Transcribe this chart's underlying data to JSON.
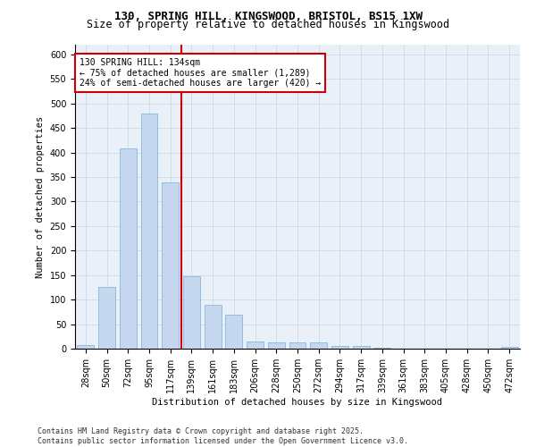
{
  "title_line1": "130, SPRING HILL, KINGSWOOD, BRISTOL, BS15 1XW",
  "title_line2": "Size of property relative to detached houses in Kingswood",
  "xlabel": "Distribution of detached houses by size in Kingswood",
  "ylabel": "Number of detached properties",
  "categories": [
    "28sqm",
    "50sqm",
    "72sqm",
    "95sqm",
    "117sqm",
    "139sqm",
    "161sqm",
    "183sqm",
    "206sqm",
    "228sqm",
    "250sqm",
    "272sqm",
    "294sqm",
    "317sqm",
    "339sqm",
    "361sqm",
    "383sqm",
    "405sqm",
    "428sqm",
    "450sqm",
    "472sqm"
  ],
  "values": [
    8,
    125,
    408,
    480,
    340,
    148,
    90,
    70,
    15,
    12,
    12,
    12,
    6,
    5,
    1,
    0,
    0,
    0,
    0,
    0,
    3
  ],
  "bar_color": "#c5d8f0",
  "bar_edge_color": "#7aadd4",
  "bar_width": 0.8,
  "vline_x": 4.5,
  "vline_color": "#cc0000",
  "annotation_text": "130 SPRING HILL: 134sqm\n← 75% of detached houses are smaller (1,289)\n24% of semi-detached houses are larger (420) →",
  "annotation_box_color": "#ffffff",
  "annotation_box_edge": "#cc0000",
  "ylim": [
    0,
    620
  ],
  "yticks": [
    0,
    50,
    100,
    150,
    200,
    250,
    300,
    350,
    400,
    450,
    500,
    550,
    600
  ],
  "grid_color": "#d0d8e8",
  "background_color": "#eaf0f8",
  "footer_text": "Contains HM Land Registry data © Crown copyright and database right 2025.\nContains public sector information licensed under the Open Government Licence v3.0.",
  "title_fontsize": 9,
  "subtitle_fontsize": 8.5,
  "axis_label_fontsize": 7.5,
  "tick_fontsize": 7,
  "annotation_fontsize": 7,
  "footer_fontsize": 6
}
